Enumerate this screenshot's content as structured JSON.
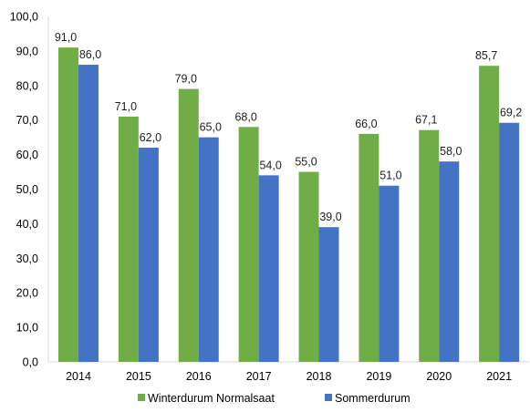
{
  "chart_data": {
    "type": "bar",
    "categories": [
      "2014",
      "2015",
      "2016",
      "2017",
      "2018",
      "2019",
      "2020",
      "2021"
    ],
    "series": [
      {
        "name": "Winterdurum Normalsaat",
        "color": "#70ad47",
        "values": [
          91.0,
          71.0,
          79.0,
          68.0,
          55.0,
          66.0,
          67.1,
          85.7
        ],
        "labels": [
          "91,0",
          "71,0",
          "79,0",
          "68,0",
          "55,0",
          "66,0",
          "67,1",
          "85,7"
        ]
      },
      {
        "name": "Sommerdurum",
        "color": "#4472c4",
        "values": [
          86.0,
          62.0,
          65.0,
          54.0,
          39.0,
          51.0,
          58.0,
          69.2
        ],
        "labels": [
          "86,0",
          "62,0",
          "65,0",
          "54,0",
          "39,0",
          "51,0",
          "58,0",
          "69,2"
        ]
      }
    ],
    "ylim": [
      0,
      100
    ],
    "yticks": [
      "0,0",
      "10,0",
      "20,0",
      "30,0",
      "40,0",
      "50,0",
      "60,0",
      "70,0",
      "80,0",
      "90,0",
      "100,0"
    ],
    "grid": false,
    "legend_position": "bottom"
  }
}
